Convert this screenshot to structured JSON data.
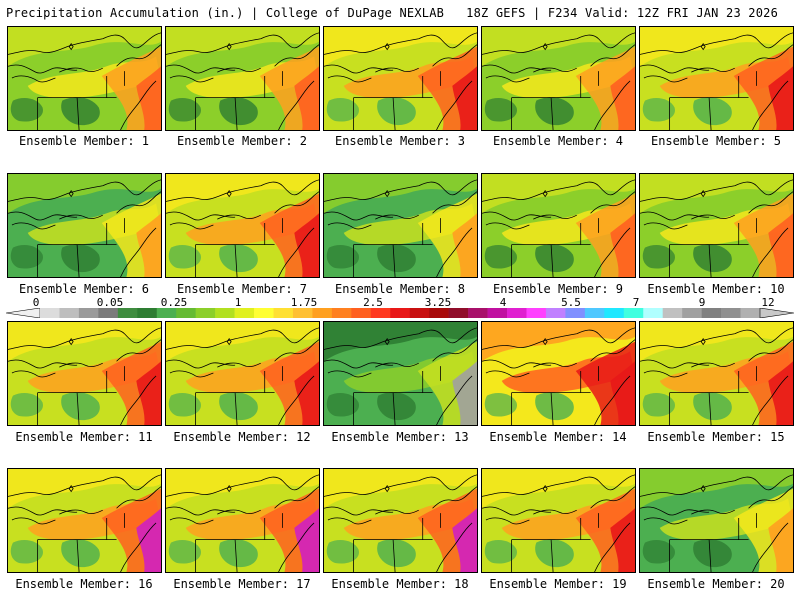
{
  "header": {
    "left_title": "Precipitation Accumulation (in.) | College of DuPage NEXLAB",
    "right_title": "18Z GEFS | F234 Valid: 12Z FRI JAN 23 2026"
  },
  "colorbar": {
    "labels": [
      "0",
      "0.05",
      "0.25",
      "1",
      "1.75",
      "2.5",
      "3.25",
      "4",
      "5.5",
      "7",
      "9",
      "12"
    ],
    "colors": [
      "#dcdcdc",
      "#bebebe",
      "#9a9a9a",
      "#7b7b7b",
      "#3f8c3f",
      "#2e7d32",
      "#4caf50",
      "#66bb33",
      "#8ccf2a",
      "#b2e020",
      "#e0f020",
      "#ffff33",
      "#ffe033",
      "#ffc033",
      "#ffa020",
      "#ff8020",
      "#ff6020",
      "#ff3a20",
      "#e81818",
      "#c81010",
      "#a80a0a",
      "#900d2a",
      "#a8106a",
      "#c010a0",
      "#e020d0",
      "#ff40ff",
      "#c080ff",
      "#8090ff",
      "#4fc8ff",
      "#20e8ff",
      "#40ffe0",
      "#b0ffff",
      "#c0c0c0",
      "#a0a0a0",
      "#808080",
      "#909090",
      "#b0b0b0"
    ]
  },
  "palette": {
    "dark_green": "#2e7d32",
    "green": "#4caf50",
    "light_green": "#8ccf2a",
    "yellow_green": "#c8e020",
    "yellow": "#f4e81c",
    "orange": "#ffa020",
    "red_orange": "#ff6020",
    "red": "#e81818",
    "magenta": "#d020c0",
    "gray": "#a0a0a0",
    "outline": "#000000"
  },
  "members": [
    {
      "label": "Ensemble Member: 1",
      "scheme": "mixed"
    },
    {
      "label": "Ensemble Member: 2",
      "scheme": "mixed"
    },
    {
      "label": "Ensemble Member: 3",
      "scheme": "wet"
    },
    {
      "label": "Ensemble Member: 4",
      "scheme": "mixed"
    },
    {
      "label": "Ensemble Member: 5",
      "scheme": "wet"
    },
    {
      "label": "Ensemble Member: 6",
      "scheme": "green"
    },
    {
      "label": "Ensemble Member: 7",
      "scheme": "wet"
    },
    {
      "label": "Ensemble Member: 8",
      "scheme": "green"
    },
    {
      "label": "Ensemble Member: 9",
      "scheme": "mixed"
    },
    {
      "label": "Ensemble Member: 10",
      "scheme": "mixed"
    },
    {
      "label": "Ensemble Member: 11",
      "scheme": "wet"
    },
    {
      "label": "Ensemble Member: 12",
      "scheme": "wet"
    },
    {
      "label": "Ensemble Member: 13",
      "scheme": "dry"
    },
    {
      "label": "Ensemble Member: 14",
      "scheme": "verywet"
    },
    {
      "label": "Ensemble Member: 15",
      "scheme": "wet"
    },
    {
      "label": "Ensemble Member: 16",
      "scheme": "extreme"
    },
    {
      "label": "Ensemble Member: 17",
      "scheme": "extreme"
    },
    {
      "label": "Ensemble Member: 18",
      "scheme": "extreme"
    },
    {
      "label": "Ensemble Member: 19",
      "scheme": "wet"
    },
    {
      "label": "Ensemble Member: 20",
      "scheme": "green"
    }
  ]
}
